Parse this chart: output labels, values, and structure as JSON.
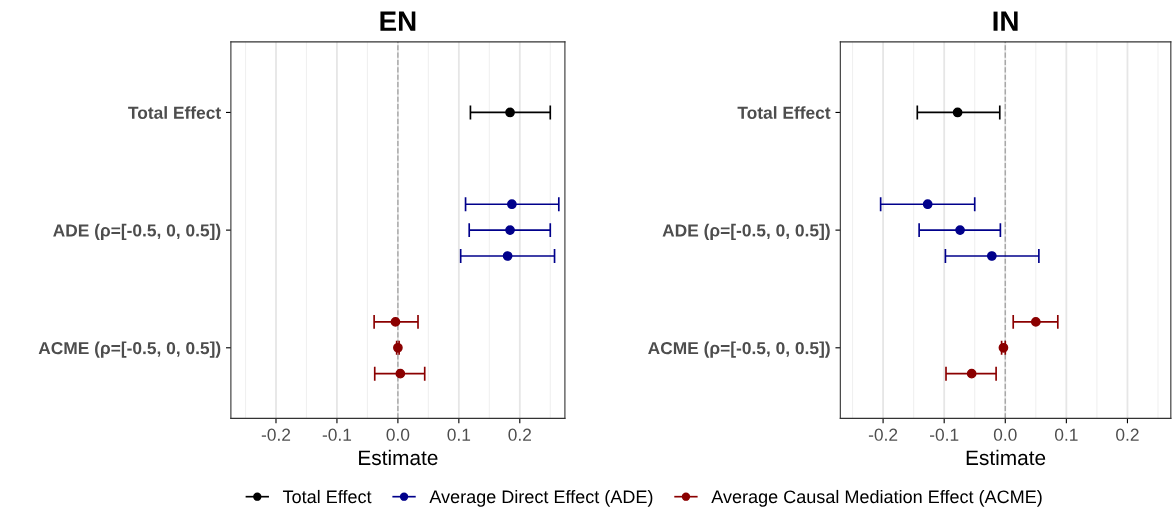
{
  "chart_data": [
    {
      "type": "scatter",
      "orientation": "horizontal",
      "title": "EN",
      "xlabel": "Estimate",
      "categories": [
        "Total Effect",
        "ADE (ρ=[-0.5, 0, 0.5])",
        "ACME (ρ=[-0.5, 0, 0.5])"
      ],
      "xlim": [
        -0.274,
        0.274
      ],
      "xticks": [
        {
          "value": -0.25,
          "label": null
        },
        -0.2,
        {
          "value": -0.15,
          "label": null
        },
        -0.1,
        {
          "value": -0.05,
          "label": null
        },
        {
          "value": 0,
          "label": "0.0"
        },
        {
          "value": 0.05,
          "label": null
        },
        0.1,
        {
          "value": 0.15,
          "label": null
        },
        0.2,
        {
          "value": 0.25,
          "label": null
        }
      ],
      "grid": "x",
      "marker": "circle",
      "legend": "bottom",
      "ref_lines": [
        {
          "axis": "x",
          "value": 0,
          "color": "#a6a6a6",
          "line_style": "dashed"
        }
      ],
      "series": [
        {
          "name": "Total Effect",
          "color": "#000000",
          "values": [
            0.184,
            null,
            null
          ],
          "errors": [
            [
              0.119,
              0.25
            ],
            null,
            null
          ]
        },
        {
          "name": "Average Direct Effect (ADE)",
          "color": "#00008b",
          "values": [
            null,
            0.187,
            null
          ],
          "errors": [
            null,
            [
              0.111,
              0.264
            ],
            null
          ]
        },
        {
          "color": "#00008b",
          "values": [
            null,
            0.184,
            null
          ],
          "errors": [
            null,
            [
              0.117,
              0.25
            ],
            null
          ]
        },
        {
          "color": "#00008b",
          "values": [
            null,
            0.18,
            null
          ],
          "errors": [
            null,
            [
              0.103,
              0.257
            ],
            null
          ]
        },
        {
          "name": "Average Causal Mediation Effect (ACME)",
          "color": "#8b0000",
          "values": [
            null,
            null,
            -0.004
          ],
          "errors": [
            null,
            null,
            [
              -0.039,
              0.033
            ]
          ]
        },
        {
          "color": "#8b0000",
          "values": [
            null,
            null,
            0.0
          ],
          "errors": [
            null,
            null,
            [
              -0.002,
              0.002
            ]
          ]
        },
        {
          "color": "#8b0000",
          "values": [
            null,
            null,
            0.004
          ],
          "errors": [
            null,
            null,
            [
              -0.038,
              0.044
            ]
          ]
        }
      ]
    },
    {
      "type": "scatter",
      "orientation": "horizontal",
      "title": "IN",
      "xlabel": "Estimate",
      "categories": [
        "Total Effect",
        "ADE (ρ=[-0.5, 0, 0.5])",
        "ACME (ρ=[-0.5, 0, 0.5])"
      ],
      "xlim": [
        -0.27,
        0.271
      ],
      "xticks": [
        {
          "value": -0.25,
          "label": null
        },
        -0.2,
        {
          "value": -0.15,
          "label": null
        },
        -0.1,
        {
          "value": -0.05,
          "label": null
        },
        {
          "value": 0,
          "label": "0.0"
        },
        {
          "value": 0.05,
          "label": null
        },
        0.1,
        {
          "value": 0.15,
          "label": null
        },
        0.2,
        {
          "value": 0.25,
          "label": null
        }
      ],
      "grid": "x",
      "marker": "circle",
      "ref_lines": [
        {
          "axis": "x",
          "value": 0,
          "color": "#a6a6a6",
          "line_style": "dashed"
        }
      ],
      "series": [
        {
          "color": "#000000",
          "values": [
            -0.078,
            null,
            null
          ],
          "errors": [
            [
              -0.144,
              -0.009
            ],
            null,
            null
          ]
        },
        {
          "color": "#00008b",
          "values": [
            null,
            -0.127,
            null
          ],
          "errors": [
            null,
            [
              -0.204,
              -0.05
            ],
            null
          ]
        },
        {
          "color": "#00008b",
          "values": [
            null,
            -0.074,
            null
          ],
          "errors": [
            null,
            [
              -0.141,
              -0.008
            ],
            null
          ]
        },
        {
          "color": "#00008b",
          "values": [
            null,
            -0.022,
            null
          ],
          "errors": [
            null,
            [
              -0.098,
              0.055
            ],
            null
          ]
        },
        {
          "color": "#8b0000",
          "values": [
            null,
            null,
            0.05
          ],
          "errors": [
            null,
            null,
            [
              0.013,
              0.086
            ]
          ]
        },
        {
          "color": "#8b0000",
          "values": [
            null,
            null,
            -0.003
          ],
          "errors": [
            null,
            null,
            [
              -0.006,
              0.0
            ]
          ]
        },
        {
          "color": "#8b0000",
          "values": [
            null,
            null,
            -0.055
          ],
          "errors": [
            null,
            null,
            [
              -0.097,
              -0.015
            ]
          ]
        }
      ]
    }
  ]
}
